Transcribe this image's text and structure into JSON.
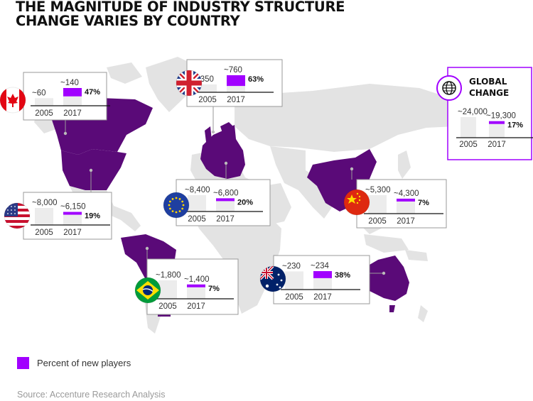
{
  "title_lines": [
    "THE MAGNITUDE OF INDUSTRY STRUCTURE",
    "CHANGE VARIES BY COUNTRY"
  ],
  "legend": {
    "label": "Percent of new players",
    "color": "#a100ff"
  },
  "source": "Source: Accenture Research Analysis",
  "colors": {
    "highlight_country": "#5a0a78",
    "map_land": "#e3e3e3",
    "bar_2005": "#ececec",
    "bar_new_players": "#a100ff",
    "box_border": "#9a9a9a",
    "global_border": "#a100ff"
  },
  "chart_data": {
    "type": "bar",
    "title": "THE MAGNITUDE OF INDUSTRY STRUCTURE CHANGE VARIES BY COUNTRY",
    "categories": [
      "2005",
      "2017"
    ],
    "legend_label": "Percent of new players",
    "panels": [
      {
        "region": "Canada",
        "flag": "canada-flag-icon",
        "values_label": [
          "~60",
          "~140"
        ],
        "values": [
          60,
          140
        ],
        "new_players_pct_label": "47%",
        "new_players_pct": 47
      },
      {
        "region": "United Kingdom",
        "flag": "uk-flag-icon",
        "values_label": [
          "~350",
          "~760"
        ],
        "values": [
          350,
          760
        ],
        "new_players_pct_label": "63%",
        "new_players_pct": 63
      },
      {
        "region": "United States",
        "flag": "us-flag-icon",
        "values_label": [
          "~8,000",
          "~6,150"
        ],
        "values": [
          8000,
          6150
        ],
        "new_players_pct_label": "19%",
        "new_players_pct": 19
      },
      {
        "region": "European Union",
        "flag": "eu-flag-icon",
        "values_label": [
          "~8,400",
          "~6,800"
        ],
        "values": [
          8400,
          6800
        ],
        "new_players_pct_label": "20%",
        "new_players_pct": 20
      },
      {
        "region": "China",
        "flag": "china-flag-icon",
        "values_label": [
          "~5,300",
          "~4,300"
        ],
        "values": [
          5300,
          4300
        ],
        "new_players_pct_label": "7%",
        "new_players_pct": 7
      },
      {
        "region": "Brazil",
        "flag": "brazil-flag-icon",
        "values_label": [
          "~1,800",
          "~1,400"
        ],
        "values": [
          1800,
          1400
        ],
        "new_players_pct_label": "7%",
        "new_players_pct": 7
      },
      {
        "region": "Australia",
        "flag": "australia-flag-icon",
        "values_label": [
          "~230",
          "~234"
        ],
        "values": [
          230,
          234
        ],
        "new_players_pct_label": "38%",
        "new_players_pct": 38
      },
      {
        "region": "Global",
        "heading": [
          "GLOBAL",
          "CHANGE"
        ],
        "flag": "globe-icon",
        "values_label": [
          "~24,000",
          "~19,300"
        ],
        "values": [
          24000,
          19300
        ],
        "new_players_pct_label": "17%",
        "new_players_pct": 17
      }
    ]
  }
}
